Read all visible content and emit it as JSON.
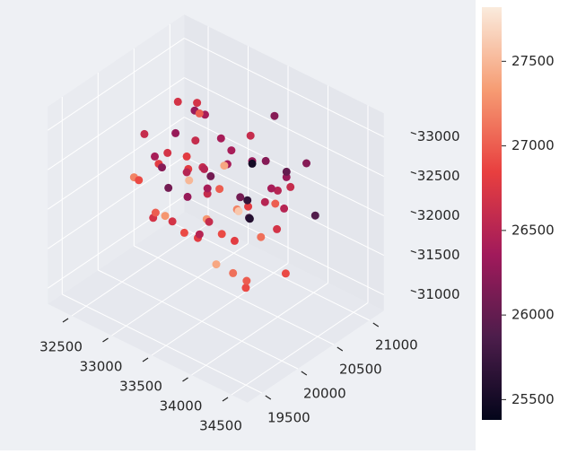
{
  "chart_data": {
    "type": "scatter3d",
    "x": [
      32600,
      32800,
      33000,
      33200,
      33400,
      33600,
      33800,
      34000,
      34200,
      32700,
      32900,
      33100,
      33300,
      33500,
      33700,
      33900,
      34100,
      32650,
      32850,
      33050,
      33250,
      33450,
      33650,
      33850,
      34050,
      32750,
      32950,
      33150,
      33350,
      33550,
      33750,
      33950,
      34150,
      32700,
      33000,
      33300,
      33600,
      33900,
      34200,
      32800,
      33100,
      33400,
      33700,
      34000,
      32900,
      33200,
      33500,
      33800,
      34100,
      32600,
      33000,
      33400,
      33800,
      34200,
      32700,
      33100,
      33500,
      33900,
      32800,
      33200,
      33600,
      34000,
      33000,
      33400,
      33800,
      32900,
      33300,
      33700,
      34100,
      33500
    ],
    "y": [
      20200,
      19900,
      20600,
      20400,
      19700,
      20900,
      20100,
      20500,
      20800,
      20700,
      20300,
      19800,
      20900,
      20200,
      19900,
      20600,
      20300,
      20000,
      20800,
      20400,
      20100,
      20700,
      19800,
      20500,
      20000,
      20500,
      20100,
      20800,
      19700,
      20400,
      20900,
      20200,
      19900,
      20900,
      20000,
      20500,
      20200,
      20700,
      20400,
      20300,
      20800,
      19900,
      20600,
      20100,
      20700,
      20300,
      19800,
      20900,
      20500,
      20400,
      19900,
      20600,
      20300,
      20100,
      20800,
      20200,
      20700,
      19800,
      20100,
      20600,
      20400,
      20900,
      20500,
      19900,
      20200,
      20600,
      20300,
      20800,
      20000,
      20100
    ],
    "z": [
      32600,
      32300,
      32800,
      31700,
      32200,
      32900,
      31500,
      32400,
      32000,
      31900,
      32700,
      32100,
      32500,
      31400,
      32800,
      31800,
      32600,
      32200,
      31600,
      33000,
      32400,
      31800,
      32100,
      32700,
      31500,
      32900,
      31800,
      32300,
      32600,
      31600,
      32200,
      32900,
      31700,
      31800,
      32500,
      31500,
      32700,
      32000,
      32800,
      32400,
      32100,
      32900,
      31600,
      32300,
      32000,
      33100,
      32500,
      32100,
      31400,
      32100,
      32700,
      31800,
      32300,
      32600,
      32200,
      31600,
      32400,
      32800,
      31700,
      32600,
      32000,
      32500,
      31300,
      32700,
      32400,
      32900,
      32200,
      31900,
      32400,
      32000
    ],
    "c": [
      26600,
      26900,
      26400,
      27300,
      26700,
      26200,
      27100,
      26500,
      25900,
      26800,
      26300,
      27000,
      26600,
      27400,
      26100,
      26700,
      26400,
      27200,
      26600,
      26300,
      27500,
      26800,
      26500,
      26200,
      26900,
      26700,
      27300,
      26400,
      26100,
      26800,
      26300,
      25500,
      27000,
      26600,
      26200,
      26900,
      27400,
      26500,
      26000,
      26700,
      26400,
      26800,
      27100,
      25800,
      26500,
      27000,
      26300,
      26600,
      26900,
      26800,
      26400,
      27200,
      25700,
      26500,
      26600,
      26900,
      26300,
      27000,
      26700,
      26400,
      27600,
      26200,
      26800,
      26500,
      26100,
      26700,
      26400,
      27000,
      25600,
      26600
    ],
    "xlim": [
      32200,
      34700
    ],
    "ylim": [
      19300,
      21200
    ],
    "zlim": [
      30800,
      33300
    ],
    "xticks": [
      32500,
      33000,
      33500,
      34000,
      34500
    ],
    "yticks": [
      19500,
      20000,
      20500,
      21000
    ],
    "zticks": [
      31000,
      31500,
      32000,
      32500,
      33000
    ],
    "clim": [
      25380,
      27820
    ],
    "cticks": [
      25500,
      26000,
      26500,
      27000,
      27500
    ],
    "colormap": "rocket",
    "grid": true
  }
}
